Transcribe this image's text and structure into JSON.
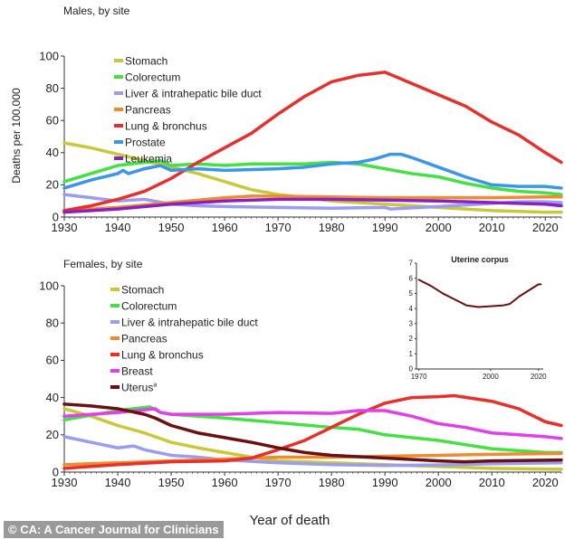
{
  "credit": "© CA: A Cancer Journal for Clinicians",
  "chart_data": [
    {
      "type": "line",
      "title": "Males, by site",
      "xlabel": "",
      "ylabel": "Deaths per 100,000",
      "xlim": [
        1930,
        2023
      ],
      "ylim": [
        0,
        100
      ],
      "xticks": [
        1930,
        1940,
        1950,
        1960,
        1970,
        1980,
        1990,
        2000,
        2010,
        2020
      ],
      "yticks": [
        0,
        20,
        40,
        60,
        80,
        100
      ],
      "grid": false,
      "legend": "top-left",
      "series": [
        {
          "name": "Stomach",
          "color": "#c8c83a",
          "x": [
            1930,
            1935,
            1940,
            1945,
            1950,
            1955,
            1960,
            1965,
            1970,
            1975,
            1980,
            1985,
            1990,
            1995,
            2000,
            2005,
            2010,
            2015,
            2020,
            2023
          ],
          "y": [
            46,
            43,
            39,
            35,
            31,
            27,
            22,
            17,
            14,
            12,
            10,
            9,
            8,
            7,
            6,
            5,
            4,
            3.5,
            3,
            3
          ]
        },
        {
          "name": "Colorectum",
          "color": "#44e044",
          "x": [
            1930,
            1935,
            1940,
            1945,
            1948,
            1950,
            1955,
            1960,
            1965,
            1970,
            1975,
            1980,
            1985,
            1990,
            1995,
            2000,
            2005,
            2010,
            2015,
            2020,
            2023
          ],
          "y": [
            22,
            27,
            32,
            34,
            35,
            32,
            33,
            32,
            33,
            33,
            33,
            34,
            33,
            30,
            27,
            25,
            21,
            18,
            16,
            15,
            14
          ]
        },
        {
          "name": "Liver & intrahepatic bile duct",
          "color": "#9a9cf0",
          "x": [
            1930,
            1935,
            1940,
            1945,
            1950,
            1955,
            1960,
            1970,
            1980,
            1990,
            1991,
            2000,
            2010,
            2015,
            2020,
            2023
          ],
          "y": [
            14,
            12,
            10,
            11,
            8,
            7,
            6.5,
            6,
            5.5,
            6,
            5,
            6.5,
            8.5,
            9.5,
            9.5,
            9
          ]
        },
        {
          "name": "Pancreas",
          "color": "#f08a30",
          "x": [
            1930,
            1940,
            1950,
            1960,
            1965,
            1970,
            1980,
            1990,
            2000,
            2010,
            2020,
            2023
          ],
          "y": [
            4,
            6,
            9,
            12,
            13,
            13,
            12.5,
            12,
            12,
            12,
            12.5,
            12.5
          ]
        },
        {
          "name": "Lung & bronchus",
          "color": "#e8302a",
          "x": [
            1930,
            1935,
            1940,
            1945,
            1950,
            1955,
            1960,
            1965,
            1970,
            1975,
            1980,
            1985,
            1990,
            1995,
            2000,
            2005,
            2010,
            2015,
            2020,
            2023
          ],
          "y": [
            4,
            7,
            11,
            16,
            24,
            34,
            43,
            52,
            64,
            75,
            84,
            88,
            90,
            83,
            76,
            69,
            59,
            51,
            40,
            34
          ]
        },
        {
          "name": "Prostate",
          "color": "#3a96e8",
          "x": [
            1930,
            1935,
            1940,
            1941,
            1942,
            1945,
            1948,
            1950,
            1955,
            1960,
            1970,
            1975,
            1980,
            1985,
            1988,
            1991,
            1993,
            1995,
            2000,
            2005,
            2010,
            2015,
            2020,
            2023
          ],
          "y": [
            18,
            23,
            27,
            29,
            27,
            30,
            32,
            29,
            30,
            29,
            30,
            31,
            33,
            34,
            36,
            39,
            39,
            37,
            31,
            25,
            20,
            19,
            19,
            18
          ]
        },
        {
          "name": "Leukemia",
          "color": "#8a20c0",
          "x": [
            1930,
            1940,
            1950,
            1960,
            1970,
            1980,
            1990,
            2000,
            2010,
            2020,
            2023
          ],
          "y": [
            3,
            5,
            8,
            10,
            11,
            11,
            10.5,
            10,
            9,
            8,
            7
          ]
        }
      ]
    },
    {
      "type": "line",
      "title": "Females, by site",
      "xlabel": "Year of death",
      "ylabel": "",
      "xlim": [
        1930,
        2023
      ],
      "ylim": [
        0,
        100
      ],
      "xticks": [
        1930,
        1940,
        1950,
        1960,
        1970,
        1980,
        1990,
        2000,
        2010,
        2020
      ],
      "yticks": [
        0,
        20,
        40,
        60,
        80,
        100
      ],
      "grid": false,
      "legend": "top-left",
      "series": [
        {
          "name": "Stomach",
          "color": "#c8c83a",
          "x": [
            1930,
            1935,
            1940,
            1945,
            1950,
            1955,
            1960,
            1965,
            1970,
            1980,
            1990,
            2000,
            2010,
            2023
          ],
          "y": [
            34,
            30,
            25,
            21,
            16,
            13,
            10.5,
            8,
            6,
            5,
            4,
            3,
            2,
            1.5
          ]
        },
        {
          "name": "Colorectum",
          "color": "#44e044",
          "x": [
            1930,
            1940,
            1946,
            1948,
            1950,
            1960,
            1970,
            1980,
            1985,
            1990,
            2000,
            2010,
            2020,
            2023
          ],
          "y": [
            28,
            33,
            35,
            32,
            31,
            29,
            26.5,
            24,
            23,
            20,
            17,
            12.5,
            10.5,
            10.5
          ]
        },
        {
          "name": "Liver & intrahepatic bile duct",
          "color": "#9a9cf0",
          "x": [
            1930,
            1935,
            1940,
            1943,
            1945,
            1950,
            1955,
            1960,
            1970,
            1980,
            1990,
            2000,
            2010,
            2023
          ],
          "y": [
            19,
            16,
            13,
            14,
            12,
            9,
            8,
            6.5,
            5,
            4,
            3.5,
            3.8,
            4.5,
            5
          ]
        },
        {
          "name": "Pancreas",
          "color": "#f08a30",
          "x": [
            1930,
            1940,
            1950,
            1960,
            1970,
            1980,
            1990,
            2000,
            2010,
            2023
          ],
          "y": [
            4,
            5,
            6,
            7,
            8,
            8,
            8.5,
            9,
            9.5,
            10
          ]
        },
        {
          "name": "Lung & bronchus",
          "color": "#e8302a",
          "x": [
            1930,
            1940,
            1950,
            1960,
            1965,
            1970,
            1975,
            1980,
            1985,
            1990,
            1995,
            2000,
            2003,
            2010,
            2015,
            2020,
            2023
          ],
          "y": [
            2,
            4,
            5.5,
            6,
            7.5,
            12,
            17,
            24,
            31,
            37,
            40,
            40.5,
            41,
            38,
            34,
            27,
            25
          ]
        },
        {
          "name": "Breast",
          "color": "#e040e8",
          "x": [
            1930,
            1940,
            1947,
            1948,
            1950,
            1960,
            1970,
            1980,
            1985,
            1990,
            1995,
            2000,
            2005,
            2010,
            2015,
            2020,
            2023
          ],
          "y": [
            30,
            32,
            34,
            32,
            31,
            31,
            32,
            31.5,
            33,
            33,
            30,
            26,
            24,
            21,
            20,
            19,
            18
          ]
        },
        {
          "name": "Uterus",
          "name_sup": "a",
          "color": "#6a1010",
          "x": [
            1930,
            1935,
            1940,
            1945,
            1947,
            1950,
            1955,
            1960,
            1965,
            1970,
            1975,
            1980,
            1990,
            2000,
            2005,
            2010,
            2023
          ],
          "y": [
            36.5,
            35.5,
            34,
            31,
            29,
            25,
            21,
            18.5,
            16,
            13,
            10.5,
            9,
            7.5,
            6,
            5.5,
            6,
            6.5
          ]
        }
      ]
    },
    {
      "type": "line",
      "title": "Uterine corpus",
      "xlim": [
        1969,
        2022
      ],
      "ylim": [
        0,
        7
      ],
      "xticks": [
        1970,
        2000,
        2020
      ],
      "yticks": [
        0,
        1,
        2,
        3,
        4,
        5,
        6,
        7
      ],
      "grid": false,
      "series": [
        {
          "color": "#6a1010",
          "x": [
            1970,
            1975,
            1980,
            1985,
            1990,
            1995,
            2000,
            2005,
            2008,
            2012,
            2015,
            2020,
            2021
          ],
          "y": [
            5.9,
            5.5,
            5.0,
            4.6,
            4.2,
            4.1,
            4.15,
            4.2,
            4.3,
            4.8,
            5.1,
            5.6,
            5.6
          ]
        }
      ]
    }
  ]
}
